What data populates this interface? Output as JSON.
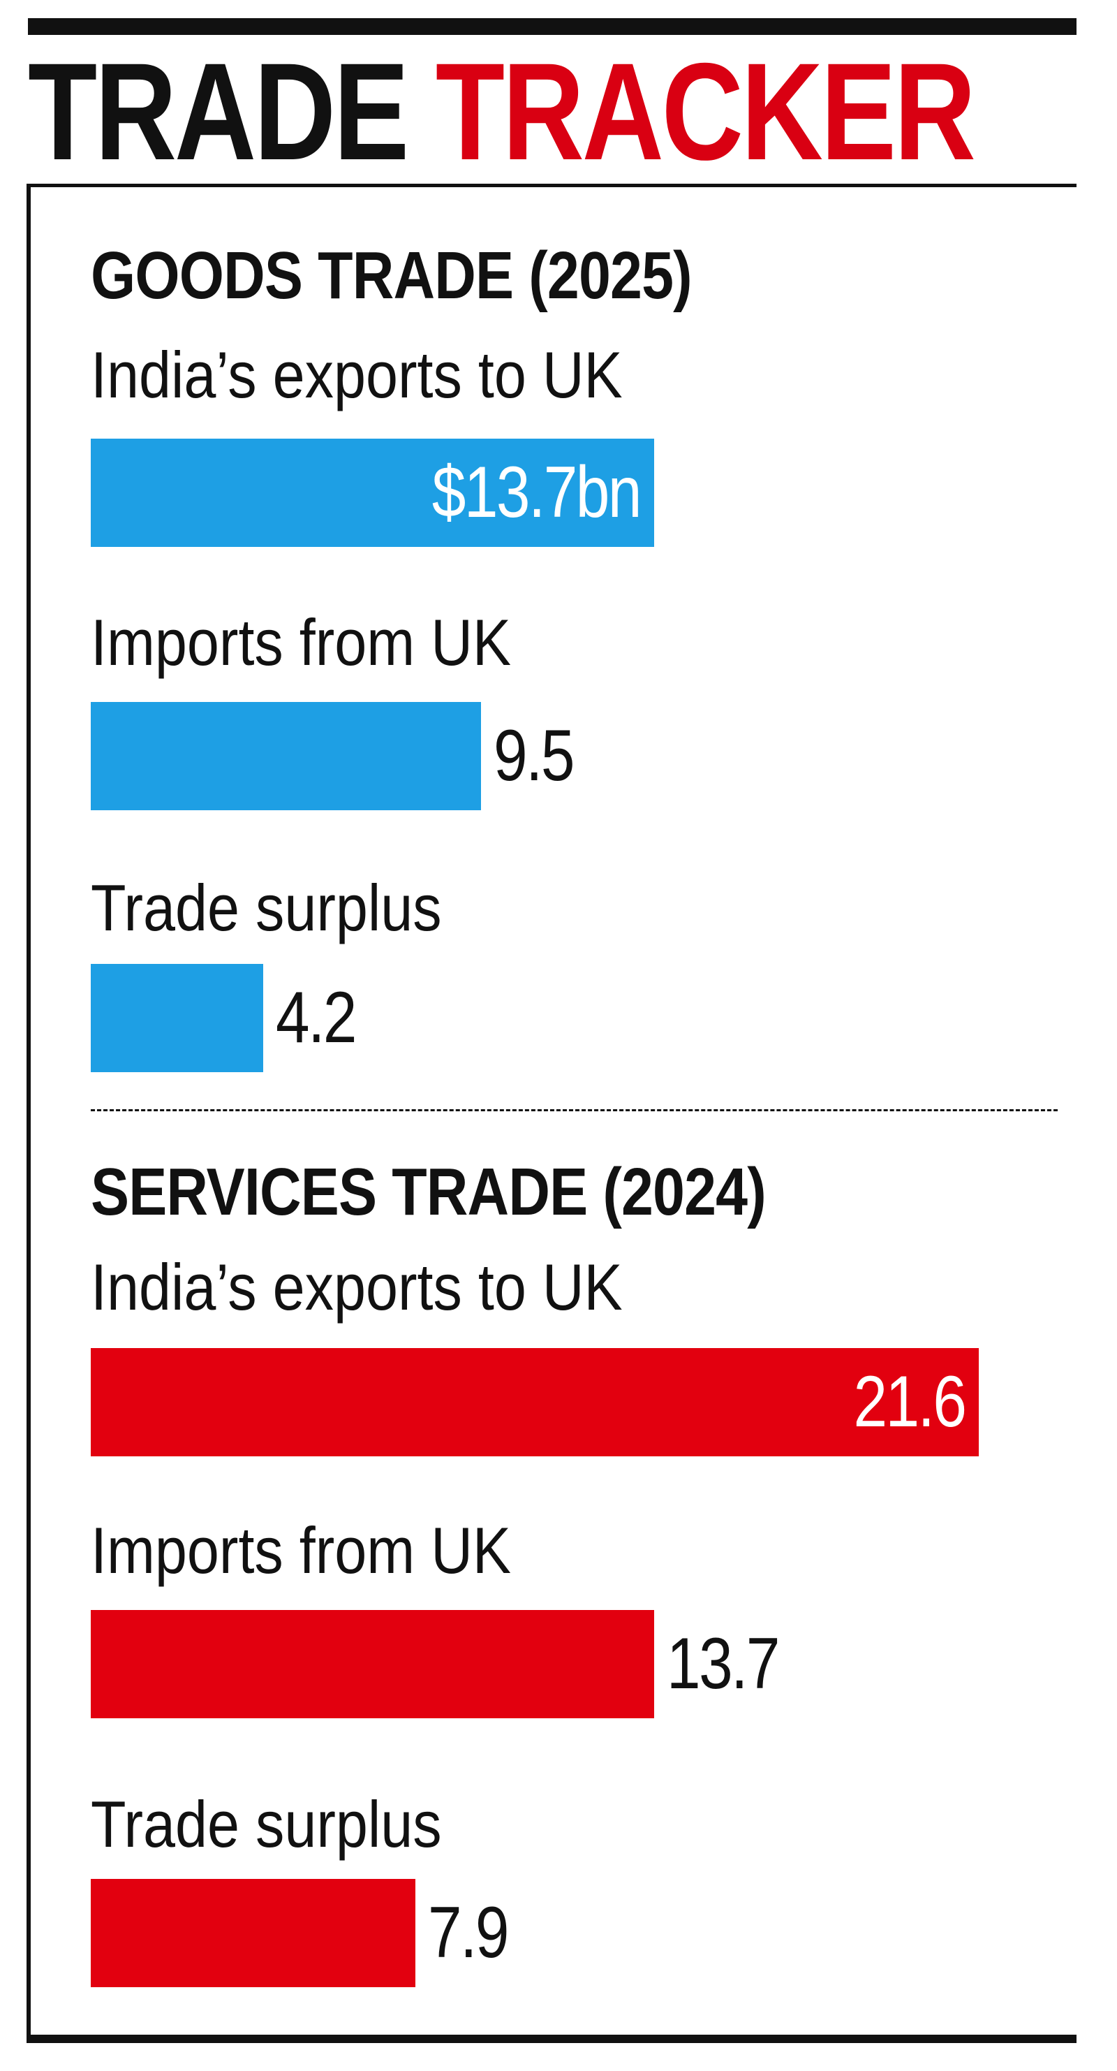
{
  "title": {
    "part1": "TRADE",
    "part2": "TRACKER"
  },
  "colors": {
    "goods": "#1e9fe4",
    "services": "#e2000f",
    "title_accent": "#d90012",
    "text": "#111111"
  },
  "chart_data": [
    {
      "type": "bar",
      "orientation": "horizontal",
      "title": "GOODS TRADE (2025)",
      "categories": [
        "India’s exports to UK",
        "Imports from UK",
        "Trade surplus"
      ],
      "values": [
        13.7,
        9.5,
        4.2
      ],
      "value_labels": [
        "$13.7bn",
        "9.5",
        "4.2"
      ],
      "unit": "$ bn",
      "color": "#1e9fe4"
    },
    {
      "type": "bar",
      "orientation": "horizontal",
      "title": "SERVICES TRADE (2024)",
      "categories": [
        "India’s exports to UK",
        "Imports from UK",
        "Trade surplus"
      ],
      "values": [
        21.6,
        13.7,
        7.9
      ],
      "value_labels": [
        "21.6",
        "13.7",
        "7.9"
      ],
      "unit": "$ bn",
      "color": "#e2000f"
    }
  ]
}
